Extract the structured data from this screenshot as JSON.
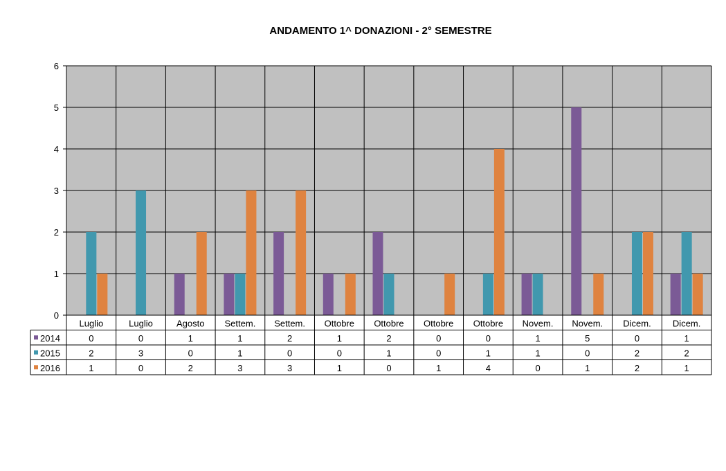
{
  "chart_data": {
    "type": "bar",
    "title": "ANDAMENTO 1^ DONAZIONI   -   2° SEMESTRE",
    "xlabel": "",
    "ylabel": "",
    "ylim": [
      0,
      6
    ],
    "yticks": [
      0,
      1,
      2,
      3,
      4,
      5,
      6
    ],
    "grid": true,
    "legend": "data-table",
    "categories": [
      "Luglio",
      "Luglio",
      "Agosto",
      "Settem.",
      "Settem.",
      "Ottobre",
      "Ottobre",
      "Ottobre",
      "Ottobre",
      "Novem.",
      "Novem.",
      "Dicem.",
      "Dicem."
    ],
    "series": [
      {
        "name": "2014",
        "color": "#7b5a96",
        "values": [
          0,
          0,
          1,
          1,
          2,
          1,
          2,
          0,
          0,
          1,
          5,
          0,
          1
        ]
      },
      {
        "name": "2015",
        "color": "#4198ae",
        "values": [
          2,
          3,
          0,
          1,
          0,
          0,
          1,
          0,
          1,
          1,
          0,
          2,
          2
        ]
      },
      {
        "name": "2016",
        "color": "#df8340",
        "values": [
          1,
          0,
          2,
          3,
          3,
          1,
          0,
          1,
          4,
          0,
          1,
          2,
          1
        ]
      }
    ]
  },
  "colors": {
    "plot_background": "#c0c0c0",
    "gridline": "#000000"
  }
}
